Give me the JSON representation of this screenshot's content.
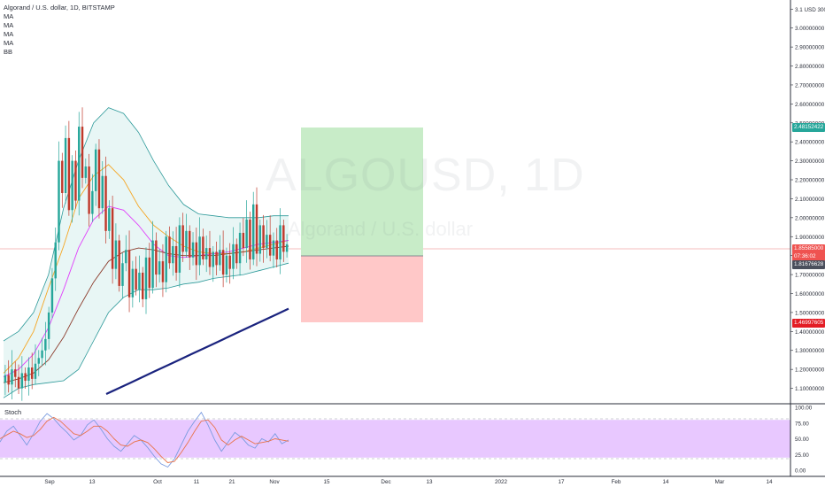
{
  "legend": {
    "title": "Algorand / U.S. dollar, 1D, BITSTAMP",
    "indicators": [
      "MA",
      "MA",
      "MA",
      "MA",
      "BB"
    ]
  },
  "watermark": {
    "symbol": "ALGOUSD, 1D",
    "name": "Algorand / U.S. dollar"
  },
  "stoch_label": "Stoch",
  "price_tags": {
    "target": {
      "value": "2.48152422",
      "color": "#26a69a"
    },
    "last": {
      "value": "1.85585000",
      "countdown": "07:36:02",
      "color": "#ef5350"
    },
    "entry": {
      "value": "1.81676628",
      "color": "#4a4f5c"
    },
    "stop": {
      "value": "1.46997605",
      "color": "#e31d25"
    }
  },
  "colors": {
    "up": "#26a69a",
    "down": "#c0392b",
    "bb_fill": "#e8f6f5",
    "bb_line": "#2e9a9a",
    "ma_orange": "#f5a623",
    "ma_pink": "#e040fb",
    "ma_brown": "#8b3a2a",
    "ma_navy": "#1a237e",
    "stoch_fill": "#e8c8ff",
    "stoch_k": "#7a9be0",
    "stoch_d": "#e8734a",
    "profit_zone": "#c8ecc8",
    "loss_zone": "#ffc8c8"
  },
  "chart_data": [
    {
      "type": "candlestick",
      "title": "Algorand / U.S. dollar, 1D, BITSTAMP",
      "y_axis_label": "USD",
      "y_ticks": [
        "3.1 USD 300",
        "3.00000000",
        "2.90000000",
        "2.80000000",
        "2.70000000",
        "2.60000000",
        "2.50000000",
        "2.40000000",
        "2.30000000",
        "2.20000000",
        "2.10000000",
        "2.00000000",
        "1.90000000",
        "1.80000000",
        "1.70000000",
        "1.60000000",
        "1.50000000",
        "1.40000000",
        "1.30000000",
        "1.20000000",
        "1.10000000"
      ],
      "ylim": [
        1.07,
        3.12
      ],
      "x_ticks": [
        "Sep",
        "13",
        "Oct",
        "11",
        "21",
        "Nov",
        "15",
        "Dec",
        "13",
        "2022",
        "17",
        "Feb",
        "14",
        "Mar",
        "14"
      ],
      "series": [
        {
          "name": "price",
          "values": [
            1.13,
            1.17,
            1.12,
            1.2,
            1.16,
            1.1,
            1.18,
            1.14,
            1.21,
            1.15,
            1.23,
            1.26,
            1.3,
            1.36,
            1.5,
            1.68,
            1.87,
            2.3,
            2.13,
            2.42,
            2.04,
            2.3,
            2.09,
            2.48,
            2.21,
            2.27,
            2.02,
            2.14,
            2.36,
            2.05,
            2.22,
            1.93,
            2.05,
            1.73,
            1.88,
            1.64,
            1.76,
            1.83,
            1.58,
            1.73,
            1.62,
            1.71,
            1.57,
            1.79,
            1.63,
            1.88,
            1.7,
            1.77,
            1.66,
            1.9,
            1.76,
            1.85,
            1.71,
            1.96,
            1.82,
            1.93,
            1.79,
            1.87,
            1.75,
            1.9,
            1.78,
            1.84,
            1.74,
            1.82,
            1.75,
            1.83,
            1.7,
            1.8,
            1.73,
            1.86,
            1.76,
            1.92,
            1.84,
            1.99,
            1.78,
            2.07,
            1.81,
            1.96,
            1.84,
            1.91,
            1.8,
            1.88,
            1.78,
            1.96,
            1.82,
            1.86
          ]
        },
        {
          "name": "BB upper",
          "values": [
            1.35,
            1.4,
            1.5,
            1.7,
            2.05,
            2.3,
            2.5,
            2.58,
            2.55,
            2.45,
            2.3,
            2.17,
            2.07,
            2.02,
            2.01,
            2.0,
            2.0,
            2.0,
            2.01,
            2.01
          ]
        },
        {
          "name": "BB lower",
          "values": [
            1.05,
            1.1,
            1.12,
            1.13,
            1.14,
            1.2,
            1.35,
            1.5,
            1.58,
            1.62,
            1.62,
            1.63,
            1.65,
            1.66,
            1.68,
            1.69,
            1.7,
            1.72,
            1.74,
            1.76
          ]
        },
        {
          "name": "MA",
          "values": [
            1.18,
            1.26,
            1.4,
            1.63,
            1.85,
            2.1,
            2.22,
            2.28,
            2.2,
            2.06,
            1.96,
            1.9,
            1.85,
            1.82,
            1.81,
            1.81,
            1.82,
            1.84,
            1.86,
            1.88
          ]
        },
        {
          "name": "MA",
          "values": [
            1.16,
            1.2,
            1.28,
            1.42,
            1.62,
            1.84,
            1.99,
            2.06,
            2.04,
            1.96,
            1.86,
            1.8,
            1.79,
            1.8,
            1.81,
            1.82,
            1.84,
            1.86,
            1.87,
            1.88
          ]
        },
        {
          "name": "MA",
          "values": [
            1.13,
            1.15,
            1.18,
            1.25,
            1.37,
            1.52,
            1.66,
            1.77,
            1.82,
            1.84,
            1.83,
            1.81,
            1.8,
            1.8,
            1.8,
            1.81,
            1.82,
            1.83,
            1.84,
            1.85
          ]
        },
        {
          "name": "MA",
          "values": [
            1.07,
            1.1,
            1.13,
            1.16,
            1.19,
            1.22,
            1.25,
            1.28,
            1.31,
            1.34,
            1.37,
            1.4,
            1.43,
            1.46,
            1.49,
            1.52
          ]
        }
      ]
    },
    {
      "type": "line",
      "title": "Stoch",
      "y_ticks": [
        "100.00",
        "75.00",
        "50.00",
        "25.00",
        "0.00"
      ],
      "ylim": [
        0,
        100
      ],
      "bands": [
        20,
        80
      ],
      "series": [
        {
          "name": "%K",
          "values": [
            45,
            62,
            70,
            55,
            40,
            58,
            78,
            90,
            82,
            70,
            60,
            48,
            55,
            72,
            80,
            66,
            50,
            38,
            30,
            42,
            55,
            48,
            36,
            22,
            10,
            5,
            18,
            40,
            62,
            78,
            92,
            72,
            48,
            30,
            45,
            60,
            52,
            40,
            35,
            50,
            45,
            58,
            42,
            48
          ]
        },
        {
          "name": "%D",
          "values": [
            50,
            56,
            62,
            58,
            52,
            55,
            65,
            78,
            84,
            78,
            68,
            58,
            55,
            62,
            70,
            70,
            62,
            50,
            40,
            38,
            45,
            48,
            44,
            34,
            22,
            12,
            14,
            28,
            44,
            62,
            78,
            80,
            68,
            48,
            40,
            48,
            54,
            48,
            42,
            44,
            46,
            50,
            48,
            46
          ]
        }
      ]
    }
  ]
}
